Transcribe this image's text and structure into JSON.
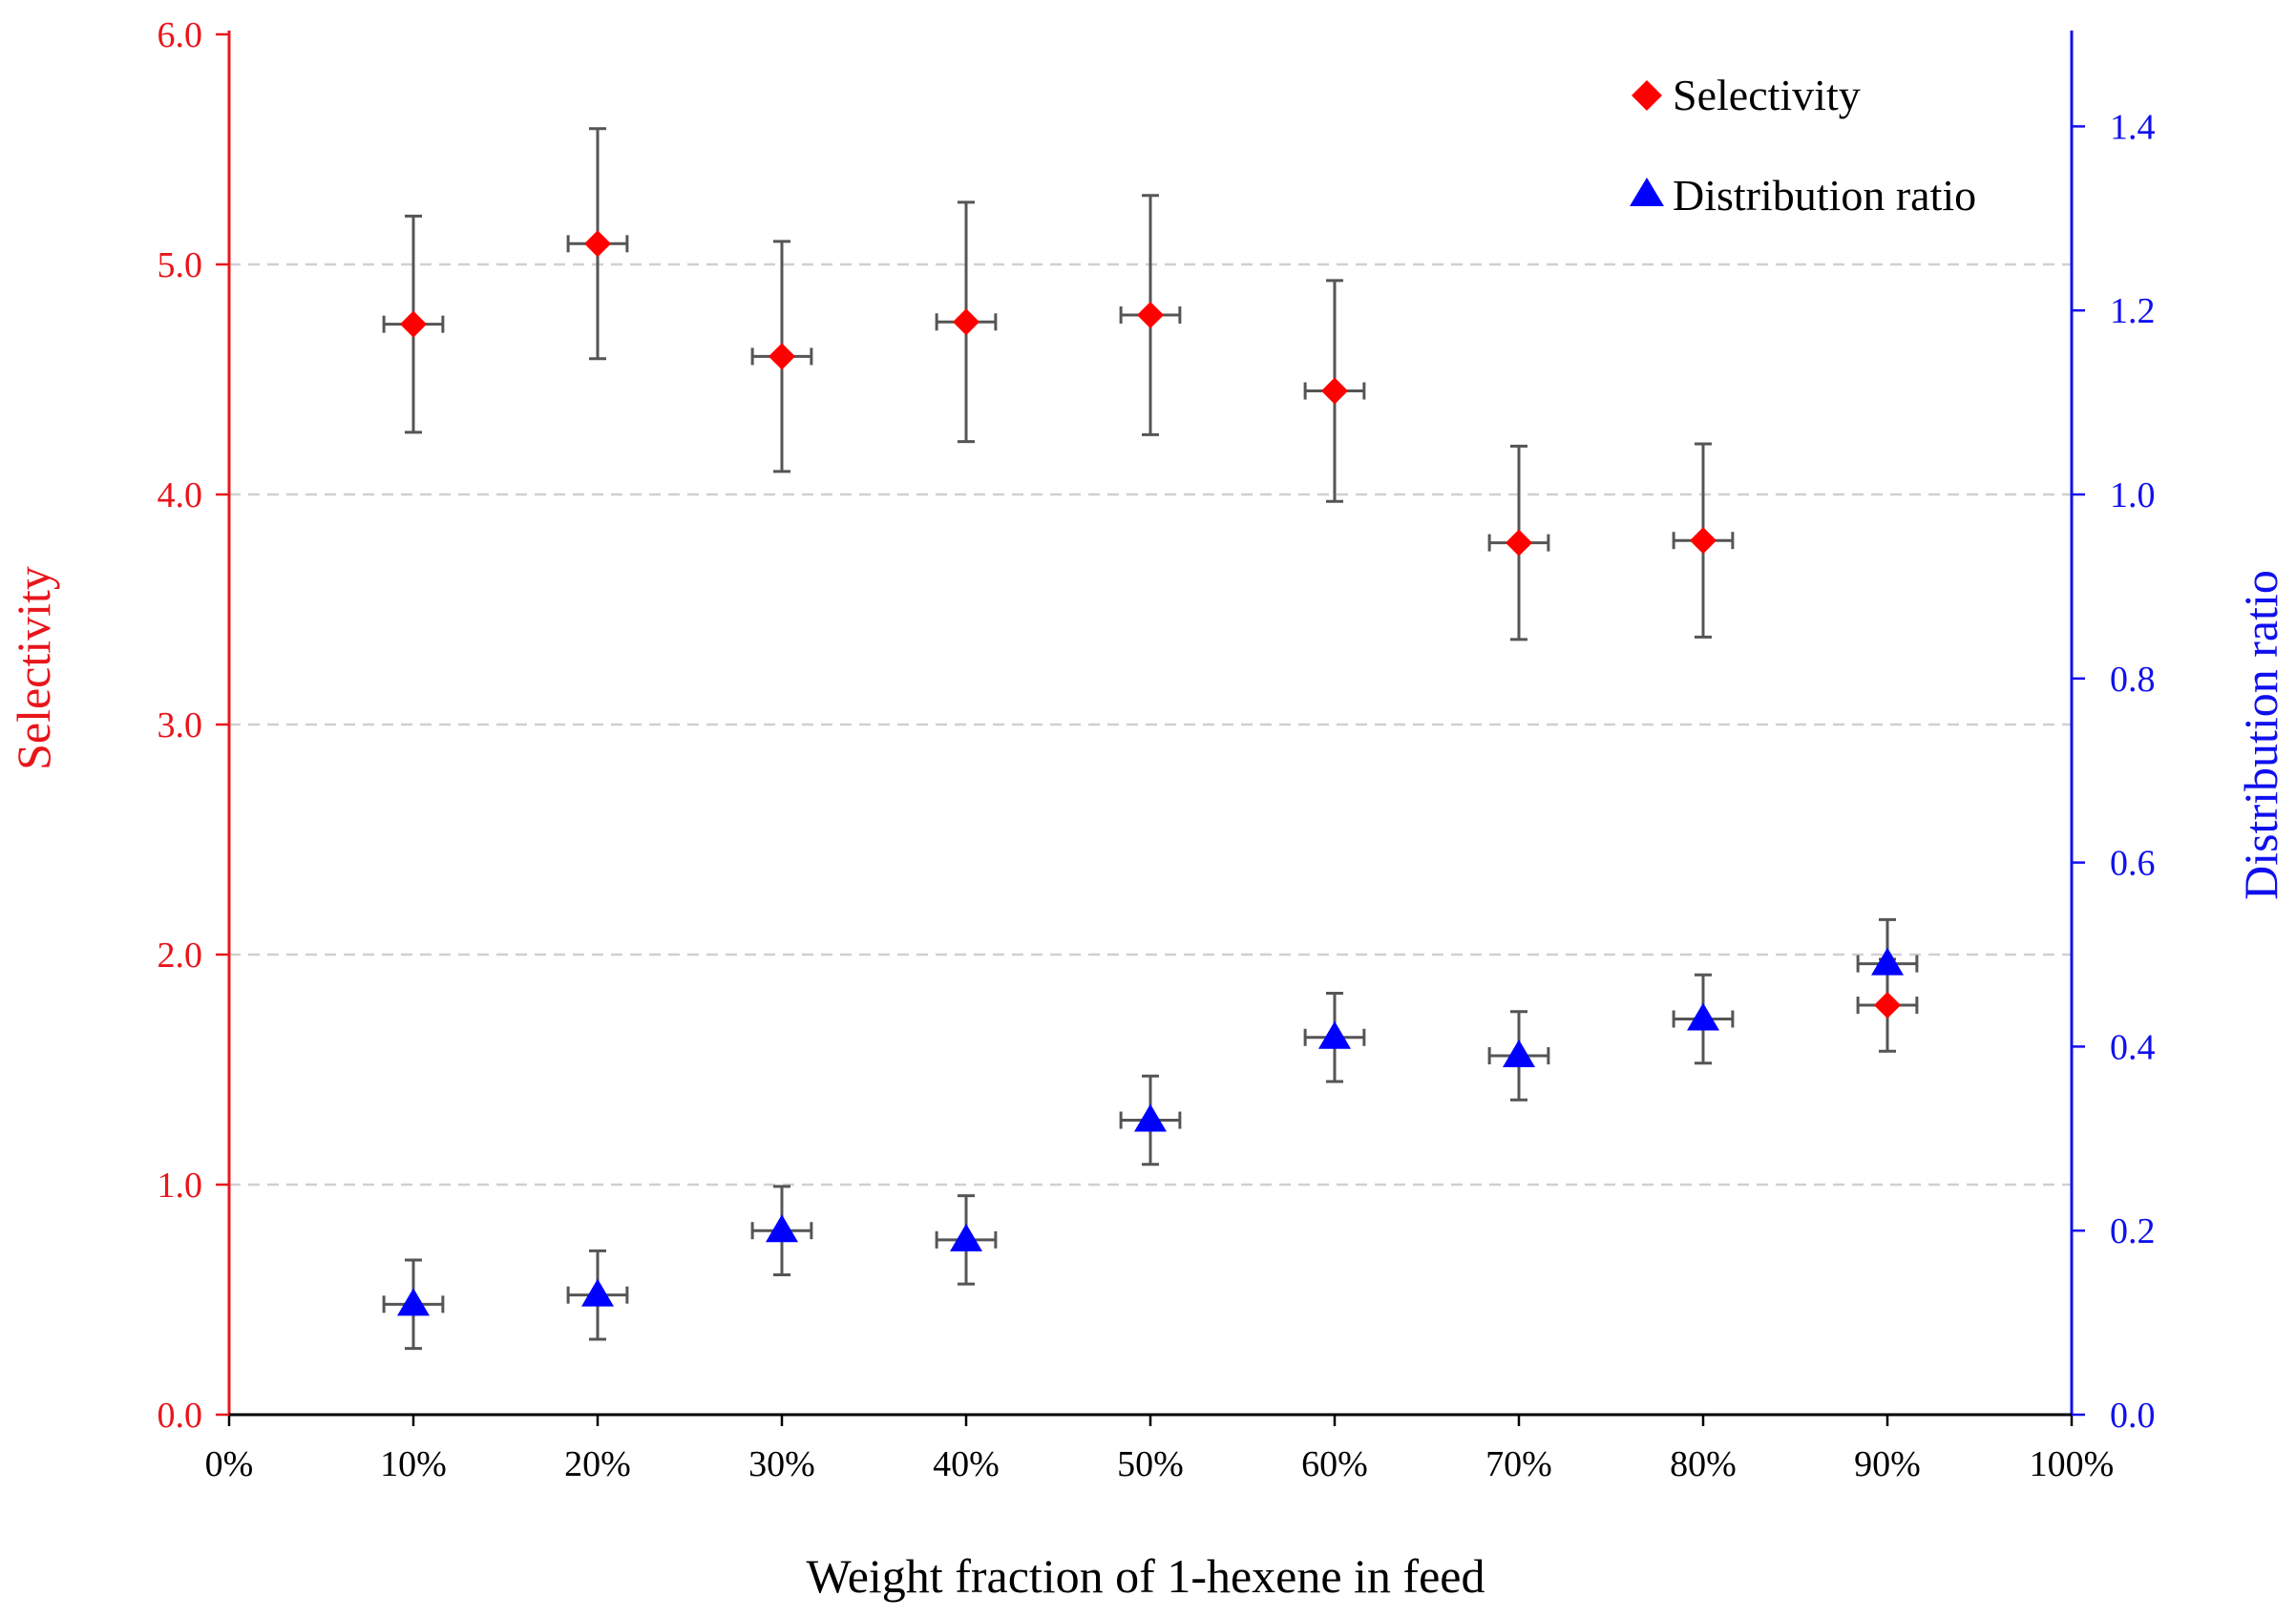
{
  "chart_data": {
    "type": "scatter",
    "xlabel": "Weight fraction of 1-hexene in feed",
    "ylabel_left": "Selectivity",
    "ylabel_right": "Distribution ratio",
    "xlim": [
      0,
      100
    ],
    "ylim_left": [
      0,
      6
    ],
    "ylim_right": [
      0,
      1.5
    ],
    "x_tick_values": [
      0,
      10,
      20,
      30,
      40,
      50,
      60,
      70,
      80,
      90,
      100
    ],
    "x_tick_labels": [
      "0%",
      "10%",
      "20%",
      "30%",
      "40%",
      "50%",
      "60%",
      "70%",
      "80%",
      "90%",
      "100%"
    ],
    "y_left_tick_values": [
      0,
      1,
      2,
      3,
      4,
      5,
      6
    ],
    "y_left_tick_labels": [
      "0.0",
      "1.0",
      "2.0",
      "3.0",
      "4.0",
      "5.0",
      "6.0"
    ],
    "y_right_tick_values": [
      0,
      0.2,
      0.4,
      0.6,
      0.8,
      1.0,
      1.2,
      1.4
    ],
    "y_right_tick_labels": [
      "0.0",
      "0.2",
      "0.4",
      "0.6",
      "0.8",
      "1.0",
      "1.2",
      "1.4"
    ],
    "gridlines_left": [
      1,
      2,
      3,
      4,
      5
    ],
    "x_error": 1.6,
    "legend_position": "top-right",
    "colors": {
      "left_axis": "#e8161c",
      "right_axis": "#1010ee",
      "selectivity": "#ff0000",
      "distribution": "#0000ff",
      "errorbar": "#555555",
      "grid": "#d0d0d0"
    },
    "series": [
      {
        "name": "Selectivity",
        "axis": "left",
        "marker": "diamond",
        "x": [
          10,
          20,
          30,
          40,
          50,
          60,
          70,
          80,
          90
        ],
        "y": [
          4.74,
          5.09,
          4.6,
          4.75,
          4.78,
          4.45,
          3.79,
          3.8,
          1.78
        ],
        "y_err": [
          0.47,
          0.5,
          0.5,
          0.52,
          0.52,
          0.48,
          0.42,
          0.42,
          0.2
        ]
      },
      {
        "name": "Distribution ratio",
        "axis": "right",
        "marker": "triangle",
        "x": [
          10,
          20,
          30,
          40,
          50,
          60,
          70,
          80,
          90
        ],
        "y": [
          0.12,
          0.13,
          0.2,
          0.19,
          0.32,
          0.41,
          0.39,
          0.43,
          0.49
        ],
        "y_err": [
          0.048,
          0.048,
          0.048,
          0.048,
          0.048,
          0.048,
          0.048,
          0.048,
          0.048
        ]
      }
    ]
  }
}
